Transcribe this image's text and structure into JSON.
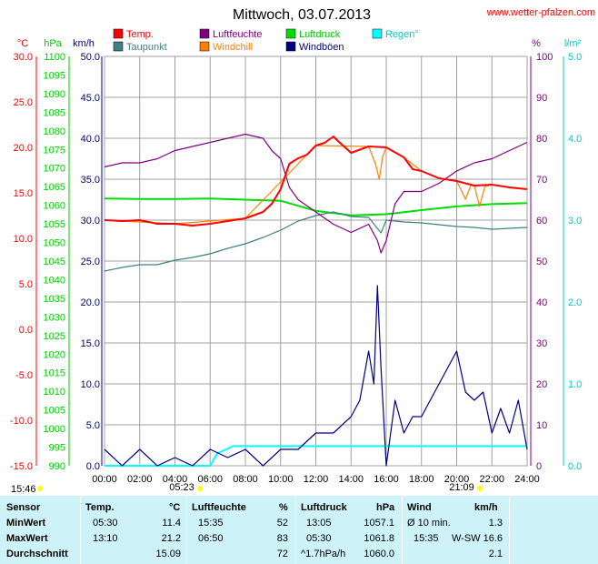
{
  "page": {
    "title": "Mittwoch, 03.07.2013",
    "source": "www.wetter-pfalzen.com"
  },
  "legend": [
    {
      "label": "Temp.",
      "color": "#ff0000"
    },
    {
      "label": "Luftfeuchte",
      "color": "#800080"
    },
    {
      "label": "Luftdruck",
      "color": "#00dd00"
    },
    {
      "label": "Regen°",
      "color": "#00ffff"
    },
    {
      "label": "Taupunkt",
      "color": "#408080"
    },
    {
      "label": "Windchill",
      "color": "#ff8000"
    },
    {
      "label": "Windböen",
      "color": "#000080"
    }
  ],
  "units": {
    "temp": "°C",
    "pressure": "hPa",
    "wind": "km/h",
    "humidity": "%",
    "rain": "l/m²"
  },
  "sun": {
    "rise": "05:23",
    "set": "21:09",
    "daylight": "15:46"
  },
  "chart_data": {
    "type": "line",
    "x_unit": "hours",
    "xlim": [
      0,
      24
    ],
    "x_ticks": [
      "00:00",
      "02:00",
      "04:00",
      "06:00",
      "08:00",
      "10:00",
      "12:00",
      "14:00",
      "16:00",
      "18:00",
      "20:00",
      "22:00",
      "24:00"
    ],
    "axes": {
      "temp": {
        "label": "°C",
        "range": [
          -15,
          30
        ],
        "ticks": [
          "30.0",
          "25.0",
          "20.0",
          "15.0",
          "10.0",
          "5.0",
          "0.0",
          "-5.0",
          "-10.0",
          "-15.0"
        ]
      },
      "pressure": {
        "label": "hPa",
        "range": [
          990,
          1100
        ],
        "ticks": [
          "1100",
          "1095",
          "1090",
          "1085",
          "1080",
          "1075",
          "1070",
          "1065",
          "1060",
          "1055",
          "1050",
          "1045",
          "1040",
          "1035",
          "1030",
          "1025",
          "1020",
          "1015",
          "1010",
          "1005",
          "1000",
          "995",
          "990"
        ]
      },
      "wind": {
        "label": "km/h",
        "range": [
          0,
          50
        ],
        "ticks": [
          "50.0",
          "45.0",
          "40.0",
          "35.0",
          "30.0",
          "25.0",
          "20.0",
          "15.0",
          "10.0",
          "5.0",
          "0.0"
        ]
      },
      "humidity": {
        "label": "%",
        "range": [
          0,
          100
        ],
        "ticks": [
          "100",
          "90",
          "80",
          "70",
          "60",
          "50",
          "40",
          "30",
          "20",
          "10",
          "0"
        ]
      },
      "rain": {
        "label": "l/m²",
        "range": [
          0,
          5
        ],
        "ticks": [
          "5.0",
          "4.0",
          "3.0",
          "2.0",
          "1.0",
          "0.0"
        ]
      }
    },
    "series": [
      {
        "name": "Temp.",
        "axis": "temp",
        "color": "#ff0000",
        "x": [
          0,
          1,
          2,
          3,
          4,
          5,
          6,
          7,
          8,
          9,
          9.5,
          10,
          10.5,
          11,
          11.5,
          12,
          12.5,
          13,
          13.2,
          14,
          15,
          16,
          17,
          17.5,
          18,
          19,
          20,
          21,
          22,
          23,
          24
        ],
        "y": [
          12.0,
          11.9,
          12.0,
          11.6,
          11.6,
          11.4,
          11.6,
          11.9,
          12.2,
          12.9,
          13.8,
          15.4,
          18.2,
          18.8,
          19.2,
          20.2,
          20.5,
          21.2,
          20.8,
          19.4,
          20.1,
          20.0,
          18.9,
          17.6,
          17.4,
          16.6,
          16.3,
          15.8,
          15.9,
          15.6,
          15.4
        ]
      },
      {
        "name": "Taupunkt",
        "axis": "temp",
        "color": "#408080",
        "x": [
          0,
          1,
          2,
          3,
          4,
          5,
          6,
          7,
          8,
          9,
          10,
          11,
          12,
          13,
          14,
          15,
          15.7,
          16,
          17,
          18,
          19,
          20,
          21,
          22,
          23,
          24
        ],
        "y": [
          6.4,
          6.8,
          7.1,
          7.1,
          7.6,
          7.9,
          8.3,
          8.9,
          9.4,
          10.1,
          10.9,
          11.9,
          12.5,
          12.9,
          12.4,
          12.3,
          10.6,
          12.0,
          11.8,
          11.7,
          11.5,
          11.3,
          11.2,
          11.0,
          11.1,
          11.2
        ]
      },
      {
        "name": "Luftfeuchte",
        "axis": "humidity",
        "color": "#800080",
        "x": [
          0,
          1,
          2,
          3,
          4,
          5,
          6,
          7,
          8,
          9,
          9.5,
          10,
          10.5,
          11,
          12,
          13,
          14,
          15,
          15.5,
          15.7,
          16,
          16.5,
          17,
          18,
          19,
          20,
          21,
          22,
          23,
          24
        ],
        "y": [
          73,
          74,
          74,
          75,
          77,
          78,
          79,
          80,
          81,
          80,
          77,
          75,
          68,
          65,
          62,
          59,
          57,
          59,
          55,
          52,
          55,
          64,
          67,
          67,
          69,
          72,
          74,
          75,
          77,
          79
        ]
      },
      {
        "name": "Luftdruck",
        "axis": "pressure",
        "color": "#00dd00",
        "x": [
          0,
          2,
          4,
          6,
          8,
          10,
          12,
          14,
          16,
          18,
          20,
          22,
          24
        ],
        "y": [
          1061.8,
          1061.7,
          1061.7,
          1061.8,
          1061.5,
          1061.2,
          1058.5,
          1057.3,
          1057.6,
          1058.7,
          1059.7,
          1060.3,
          1060.6
        ]
      },
      {
        "name": "Windchill",
        "axis": "temp",
        "color": "#ff8000",
        "x": [
          0,
          4,
          8,
          12,
          15.0,
          15.4,
          15.6,
          15.8,
          16,
          17,
          18,
          19,
          20,
          20.5,
          20.8,
          21,
          21.3,
          21.6,
          22,
          23,
          24
        ],
        "y": [
          12.0,
          11.6,
          12.2,
          20.2,
          20.1,
          18.1,
          16.5,
          19.0,
          20.0,
          18.9,
          17.4,
          16.6,
          16.3,
          14.3,
          15.8,
          15.8,
          13.5,
          15.7,
          15.9,
          15.6,
          15.4
        ]
      },
      {
        "name": "Windböen",
        "axis": "wind",
        "color": "#000080",
        "x": [
          0,
          1,
          2,
          3,
          4,
          5,
          6,
          7,
          8,
          9,
          10,
          11,
          12,
          13,
          14,
          14.5,
          15,
          15.3,
          15.5,
          15.7,
          16,
          16.5,
          17,
          17.5,
          18,
          18.5,
          19,
          19.5,
          20,
          20.5,
          21,
          21.5,
          22,
          22.5,
          23,
          23.5,
          24
        ],
        "y": [
          2,
          0,
          2,
          0,
          1,
          0,
          2,
          1,
          2,
          0,
          2,
          2,
          4,
          4,
          6,
          8,
          14,
          10,
          22,
          12,
          0,
          8,
          4,
          6,
          6,
          8,
          10,
          12,
          14,
          9,
          8,
          9,
          4,
          7,
          4,
          8,
          2
        ]
      },
      {
        "name": "Regen°",
        "axis": "rain",
        "color": "#00ffff",
        "x": [
          0,
          6.0,
          6.4,
          7.3,
          24
        ],
        "y": [
          0.0,
          0.0,
          0.15,
          0.24,
          0.24
        ]
      }
    ]
  },
  "stats": {
    "headers": {
      "sensor": "Sensor",
      "temp": "Temp.",
      "temp_unit": "°C",
      "hum": "Luftfeuchte",
      "hum_unit": "%",
      "press": "Luftdruck",
      "press_unit": "hPa",
      "wind": "Wind",
      "wind_unit": "km/h"
    },
    "rows": [
      {
        "label": "MinWert",
        "t_time": "05:30",
        "t_val": "11.4",
        "h_time": "15:35",
        "h_val": "52",
        "p_time": "13:05",
        "p_val": "1057.1",
        "w_time": "Ø 10 min.",
        "w_val": "1.3"
      },
      {
        "label": "MaxWert",
        "t_time": "13:10",
        "t_val": "21.2",
        "h_time": "06:50",
        "h_val": "83",
        "p_time": "05:30",
        "p_val": "1061.8",
        "w_time": "15:35",
        "w_val": "W-SW 16.6"
      },
      {
        "label": "Durchschnitt",
        "t_time": "",
        "t_val": "15.09",
        "h_time": "",
        "h_val": "72",
        "p_time": "^1.7hPa/h",
        "p_val": "1060.0",
        "w_time": "",
        "w_val": "2.1"
      }
    ]
  }
}
